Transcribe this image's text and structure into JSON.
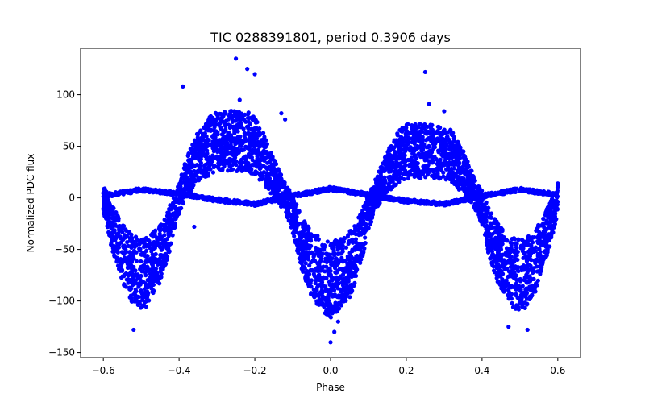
{
  "chart_data": {
    "type": "scatter",
    "title": "TIC 0288391801, period 0.3906 days",
    "xlabel": "Phase",
    "ylabel": "Normalized PDC flux",
    "xlim": [
      -0.66,
      0.66
    ],
    "ylim": [
      -155,
      145
    ],
    "x_ticks": [
      -0.6,
      -0.4,
      -0.2,
      0.0,
      0.2,
      0.4,
      0.6
    ],
    "x_tick_labels": [
      "−0.6",
      "−0.4",
      "−0.2",
      "0.0",
      "0.2",
      "0.4",
      "0.6"
    ],
    "y_ticks": [
      -150,
      -100,
      -50,
      0,
      50,
      100
    ],
    "y_tick_labels": [
      "−150",
      "−100",
      "−50",
      "0",
      "50",
      "100"
    ],
    "grid": false,
    "legend": "none",
    "marker_color": "#0000ff",
    "series": [
      {
        "description": "main folded light curve band",
        "x": [
          -0.6,
          -0.58,
          -0.55,
          -0.52,
          -0.5,
          -0.48,
          -0.45,
          -0.42,
          -0.4,
          -0.38,
          -0.35,
          -0.32,
          -0.3,
          -0.28,
          -0.25,
          -0.22,
          -0.2,
          -0.18,
          -0.15,
          -0.12,
          -0.1,
          -0.08,
          -0.05,
          -0.02,
          0.0,
          0.02,
          0.05,
          0.08,
          0.1,
          0.12,
          0.15,
          0.18,
          0.2,
          0.22,
          0.25,
          0.28,
          0.3,
          0.32,
          0.35,
          0.38,
          0.4,
          0.42,
          0.45,
          0.48,
          0.5,
          0.52,
          0.55,
          0.58,
          0.6
        ],
        "y": [
          0,
          -25,
          -55,
          -70,
          -75,
          -70,
          -55,
          -25,
          0,
          20,
          40,
          50,
          55,
          55,
          55,
          55,
          50,
          40,
          20,
          0,
          -15,
          -40,
          -65,
          -75,
          -80,
          -75,
          -65,
          -40,
          -15,
          5,
          25,
          40,
          45,
          45,
          45,
          45,
          45,
          40,
          25,
          5,
          -10,
          -35,
          -60,
          -72,
          -75,
          -72,
          -55,
          -25,
          0
        ]
      },
      {
        "description": "low-amplitude secondary component",
        "x": [
          -0.6,
          -0.5,
          -0.4,
          -0.3,
          -0.2,
          -0.1,
          0.0,
          0.1,
          0.2,
          0.3,
          0.4,
          0.5,
          0.6
        ],
        "y": [
          2,
          8,
          4,
          -2,
          -6,
          2,
          9,
          3,
          -3,
          -6,
          2,
          8,
          3
        ]
      }
    ],
    "outliers": [
      {
        "x": -0.39,
        "y": 108
      },
      {
        "x": -0.25,
        "y": 135
      },
      {
        "x": -0.24,
        "y": 95
      },
      {
        "x": -0.22,
        "y": 125
      },
      {
        "x": -0.2,
        "y": 120
      },
      {
        "x": -0.13,
        "y": 82
      },
      {
        "x": -0.12,
        "y": 76
      },
      {
        "x": 0.0,
        "y": -140
      },
      {
        "x": 0.01,
        "y": -130
      },
      {
        "x": 0.25,
        "y": 122
      },
      {
        "x": 0.26,
        "y": 91
      },
      {
        "x": -0.52,
        "y": -128
      },
      {
        "x": 0.52,
        "y": -128
      },
      {
        "x": 0.47,
        "y": -125
      },
      {
        "x": 0.02,
        "y": -120
      },
      {
        "x": 0.3,
        "y": 84
      },
      {
        "x": -0.36,
        "y": -28
      }
    ]
  }
}
